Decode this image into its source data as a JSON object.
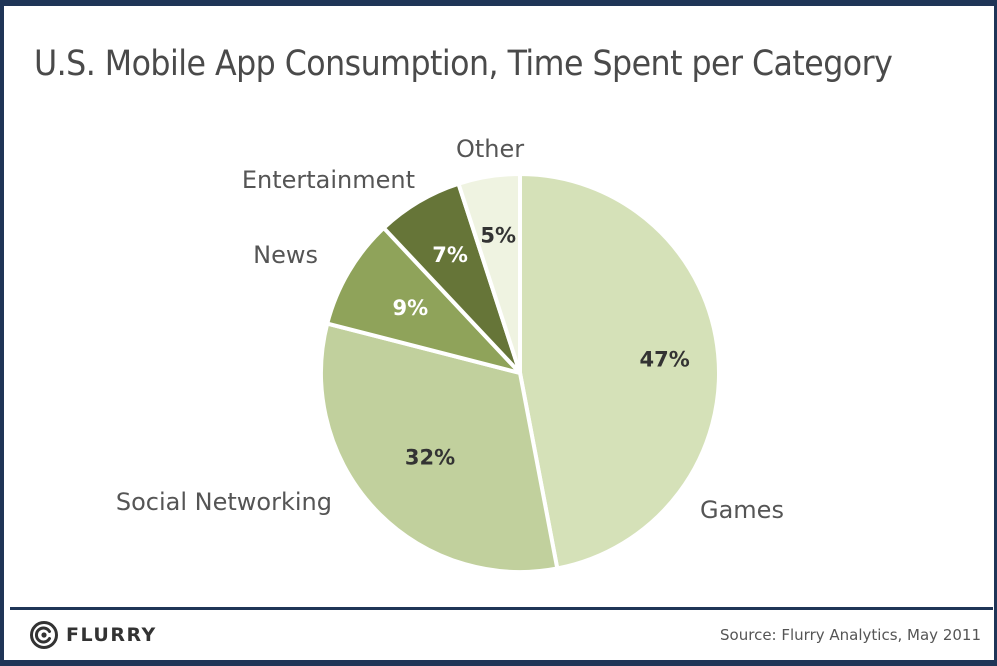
{
  "title": "U.S. Mobile App Consumption, Time Spent per Category",
  "footer": {
    "logo_text": "FLURRY",
    "source": "Source: Flurry Analytics, May 2011"
  },
  "icons": {
    "logo": "flurry-swirl-icon"
  },
  "chart_data": {
    "type": "pie",
    "title": "U.S. Mobile App Consumption, Time Spent per Category",
    "slices": [
      {
        "label": "Games",
        "value": 47,
        "value_label": "47%",
        "color": "#d5e1b8",
        "text_color": "#333333"
      },
      {
        "label": "Social Networking",
        "value": 32,
        "value_label": "32%",
        "color": "#c1d09d",
        "text_color": "#333333"
      },
      {
        "label": "News",
        "value": 9,
        "value_label": "9%",
        "color": "#8fa35a",
        "text_color": "#ffffff"
      },
      {
        "label": "Entertainment",
        "value": 7,
        "value_label": "7%",
        "color": "#667538",
        "text_color": "#ffffff"
      },
      {
        "label": "Other",
        "value": 5,
        "value_label": "5%",
        "color": "#eff3e1",
        "text_color": "#333333"
      }
    ],
    "start": "12 o'clock",
    "direction": "clockwise"
  }
}
